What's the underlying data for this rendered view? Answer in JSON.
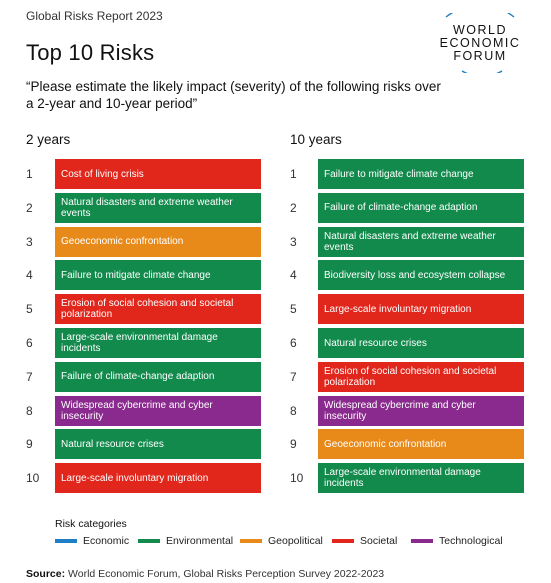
{
  "header": {
    "report": "Global Risks Report 2023",
    "title": "Top 10 Risks",
    "subtitle": "“Please estimate the likely impact (severity) of the following risks over a 2-year and 10-year period”",
    "logo": [
      "WORLD",
      "ECONOMIC",
      "FORUM"
    ]
  },
  "chart_data": {
    "type": "table",
    "columns": [
      {
        "label": "2 years",
        "rows": [
          {
            "rank": "1",
            "risk": "Cost of living crisis",
            "category": "Societal"
          },
          {
            "rank": "2",
            "risk": "Natural disasters and extreme weather events",
            "category": "Environmental"
          },
          {
            "rank": "3",
            "risk": "Geoeconomic confrontation",
            "category": "Geopolitical"
          },
          {
            "rank": "4",
            "risk": "Failure to mitigate climate change",
            "category": "Environmental"
          },
          {
            "rank": "5",
            "risk": "Erosion of social cohesion and societal polarization",
            "category": "Societal"
          },
          {
            "rank": "6",
            "risk": "Large-scale environmental damage incidents",
            "category": "Environmental"
          },
          {
            "rank": "7",
            "risk": "Failure of climate-change adaption",
            "category": "Environmental"
          },
          {
            "rank": "8",
            "risk": "Widespread cybercrime and cyber insecurity",
            "category": "Technological"
          },
          {
            "rank": "9",
            "risk": "Natural resource crises",
            "category": "Environmental"
          },
          {
            "rank": "10",
            "risk": "Large-scale involuntary migration",
            "category": "Societal"
          }
        ]
      },
      {
        "label": "10 years",
        "rows": [
          {
            "rank": "1",
            "risk": "Failure to mitigate climate change",
            "category": "Environmental"
          },
          {
            "rank": "2",
            "risk": "Failure of climate-change adaption",
            "category": "Environmental"
          },
          {
            "rank": "3",
            "risk": "Natural disasters and extreme weather events",
            "category": "Environmental"
          },
          {
            "rank": "4",
            "risk": "Biodiversity loss and ecosystem collapse",
            "category": "Environmental"
          },
          {
            "rank": "5",
            "risk": "Large-scale involuntary migration",
            "category": "Societal"
          },
          {
            "rank": "6",
            "risk": "Natural resource crises",
            "category": "Environmental"
          },
          {
            "rank": "7",
            "risk": "Erosion of social cohesion and societal polarization",
            "category": "Societal"
          },
          {
            "rank": "8",
            "risk": "Widespread cybercrime and cyber insecurity",
            "category": "Technological"
          },
          {
            "rank": "9",
            "risk": "Geoeconomic confrontation",
            "category": "Geopolitical"
          },
          {
            "rank": "10",
            "risk": "Large-scale environmental damage incidents",
            "category": "Environmental"
          }
        ]
      }
    ],
    "legend_title": "Risk categories",
    "categories": [
      {
        "name": "Economic",
        "color": "#1f7fc4"
      },
      {
        "name": "Environmental",
        "color": "#128a4c"
      },
      {
        "name": "Geopolitical",
        "color": "#e88a1a"
      },
      {
        "name": "Societal",
        "color": "#e1261c"
      },
      {
        "name": "Technological",
        "color": "#8a2a8e"
      }
    ]
  },
  "source": {
    "label": "Source:",
    "text": "World Economic Forum, Global Risks Perception Survey 2022-2023"
  }
}
